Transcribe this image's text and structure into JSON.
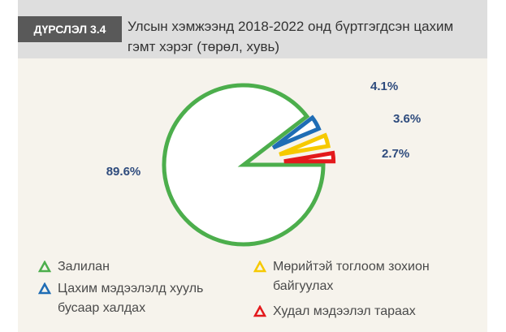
{
  "chart_data": {
    "type": "pie",
    "figure_label": "ДҮРСЛЭЛ 3.4",
    "title": "Улсын хэмжээнд 2018-2022 онд бүртгэгдсэн цахим гэмт хэрэг (төрөл, хувь)",
    "categories": [
      "Залилан",
      "Цахим мэдээлэлд хууль бусаар халдах",
      "Мөрийтэй тоглоом зохион байгуулах",
      "Худал мэдээлэл тараах"
    ],
    "values": [
      89.6,
      4.1,
      3.6,
      2.7
    ],
    "value_labels": [
      "89.6%",
      "4.1%",
      "3.6%",
      "2.7%"
    ],
    "colors": [
      "#4cae4c",
      "#1f6db5",
      "#f6c900",
      "#e3191c"
    ]
  }
}
